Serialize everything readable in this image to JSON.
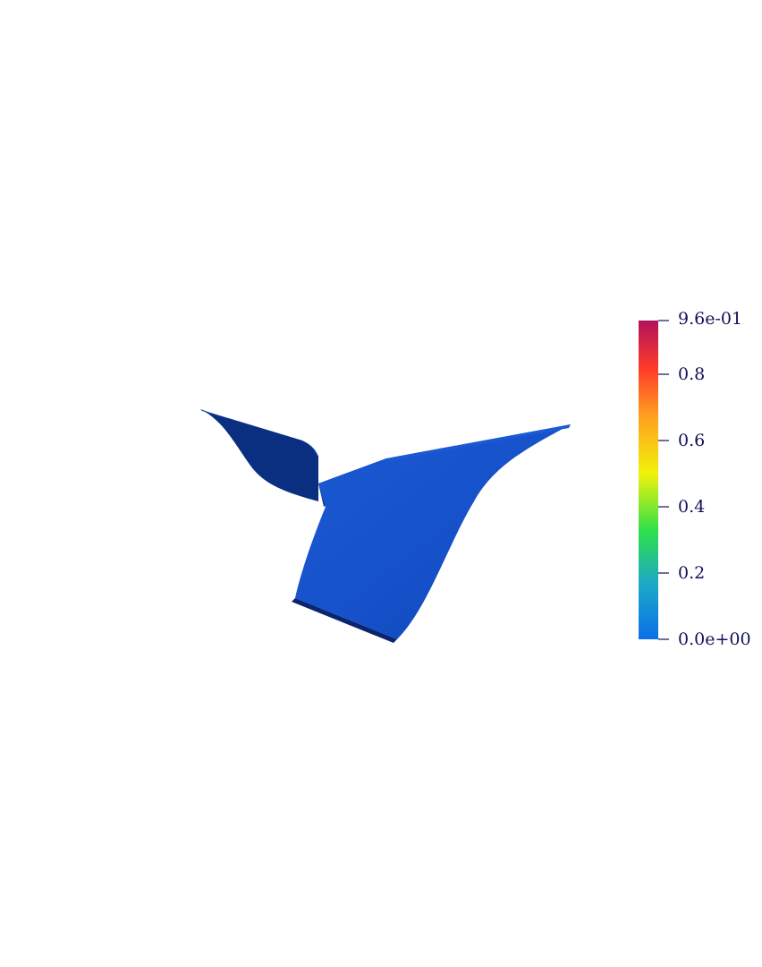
{
  "colorbar": {
    "labels": [
      "9.6e-01",
      "0.8",
      "0.6",
      "0.4",
      "0.2",
      "0.0e+00"
    ],
    "label_color": "#12125a",
    "gradient_colors": [
      "#0b6fe8",
      "#1ba8c8",
      "#2ee04a",
      "#f2f20a",
      "#ffa020",
      "#ff3a2a",
      "#b0125c"
    ]
  },
  "surface": {
    "colors": {
      "front": "#1550c8",
      "front_shade": "#0f44b4",
      "back": "#0a2f80",
      "rim": "#0c3aa0",
      "edge": "#0a2470"
    }
  }
}
